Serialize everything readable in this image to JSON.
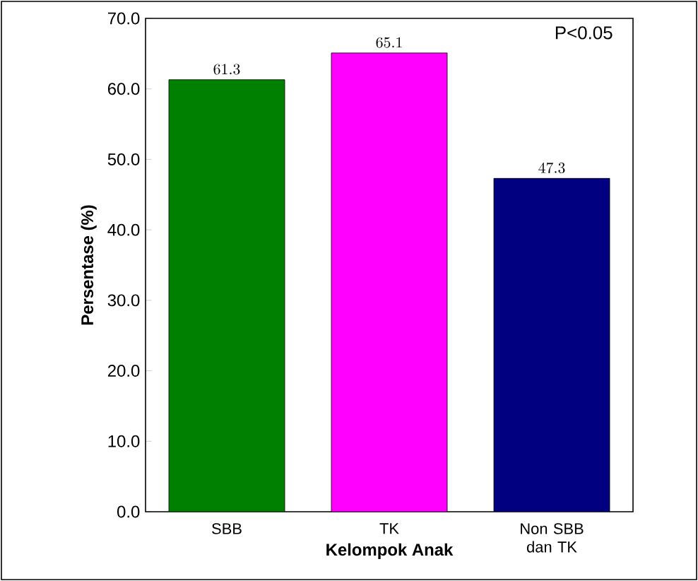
{
  "chart_data": {
    "type": "bar",
    "xlabel": "Kelompok Anak",
    "ylabel": "Persentase (%)",
    "categories": [
      "SBB",
      "TK",
      "Non SBB dan TK"
    ],
    "values": [
      61.3,
      65.1,
      47.3
    ],
    "colors": [
      "#008000",
      "#ff00ff",
      "#000080"
    ],
    "ylim": [
      0,
      70
    ],
    "yticks": [
      {
        "value": 0,
        "label": "0.0"
      },
      {
        "value": 10,
        "label": "10.0"
      },
      {
        "value": 20,
        "label": "20.0"
      },
      {
        "value": 30,
        "label": "30.0"
      },
      {
        "value": 40,
        "label": "40.0"
      },
      {
        "value": 50,
        "label": "50.0"
      },
      {
        "value": 60,
        "label": "60.0"
      },
      {
        "value": 70,
        "label": "70.0"
      }
    ],
    "data_labels": true,
    "annotations": [
      "P<0.05"
    ]
  }
}
